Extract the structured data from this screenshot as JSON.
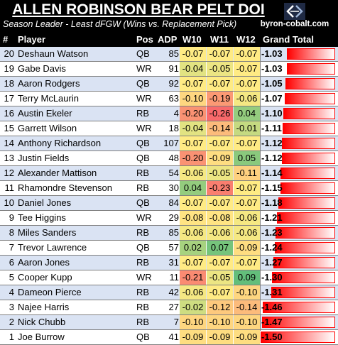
{
  "title": "ALLEN ROBINSON BEAR PELT DOI",
  "subtitle": "Season Leader - Least dFGW (Wins vs. Replacement Pick)",
  "logo_text": "byron-cobalt.com",
  "logo_icon": "bc-logo-icon",
  "columns": {
    "rank": "#",
    "player": "Player",
    "pos": "Pos",
    "adp": "ADP",
    "w10": "W10",
    "w11": "W11",
    "w12": "W12",
    "grand_total": "Grand Total"
  },
  "colors": {
    "header_bg": "#000000",
    "row_alt": "#dae3f3",
    "bar": "#ff0000",
    "negative_high": "#f8696b",
    "neutral": "#ffeb84",
    "positive": "#63be7b"
  },
  "rows": [
    {
      "rank": "20",
      "player": "Deshaun Watson",
      "pos": "QB",
      "adp": "85",
      "w10": "-0.07",
      "w11": "-0.07",
      "w12": "-0.07",
      "total": "-1.03"
    },
    {
      "rank": "19",
      "player": "Gabe Davis",
      "pos": "WR",
      "adp": "91",
      "w10": "-0.04",
      "w11": "-0.05",
      "w12": "-0.07",
      "total": "-1.03"
    },
    {
      "rank": "18",
      "player": "Aaron Rodgers",
      "pos": "QB",
      "adp": "92",
      "w10": "-0.07",
      "w11": "-0.07",
      "w12": "-0.07",
      "total": "-1.05"
    },
    {
      "rank": "17",
      "player": "Terry McLaurin",
      "pos": "WR",
      "adp": "63",
      "w10": "-0.10",
      "w11": "-0.19",
      "w12": "-0.06",
      "total": "-1.07"
    },
    {
      "rank": "16",
      "player": "Austin Ekeler",
      "pos": "RB",
      "adp": "4",
      "w10": "-0.20",
      "w11": "-0.26",
      "w12": "0.04",
      "total": "-1.10"
    },
    {
      "rank": "15",
      "player": "Garrett Wilson",
      "pos": "WR",
      "adp": "18",
      "w10": "-0.04",
      "w11": "-0.14",
      "w12": "-0.01",
      "total": "-1.11"
    },
    {
      "rank": "14",
      "player": "Anthony Richardson",
      "pos": "QB",
      "adp": "107",
      "w10": "-0.07",
      "w11": "-0.07",
      "w12": "-0.07",
      "total": "-1.12"
    },
    {
      "rank": "13",
      "player": "Justin Fields",
      "pos": "QB",
      "adp": "48",
      "w10": "-0.20",
      "w11": "-0.09",
      "w12": "0.05",
      "total": "-1.12"
    },
    {
      "rank": "12",
      "player": "Alexander Mattison",
      "pos": "RB",
      "adp": "54",
      "w10": "-0.06",
      "w11": "-0.05",
      "w12": "-0.11",
      "total": "-1.14"
    },
    {
      "rank": "11",
      "player": "Rhamondre Stevenson",
      "pos": "RB",
      "adp": "30",
      "w10": "0.04",
      "w11": "-0.23",
      "w12": "-0.07",
      "total": "-1.15"
    },
    {
      "rank": "10",
      "player": "Daniel Jones",
      "pos": "QB",
      "adp": "84",
      "w10": "-0.07",
      "w11": "-0.07",
      "w12": "-0.07",
      "total": "-1.18"
    },
    {
      "rank": "9",
      "player": "Tee Higgins",
      "pos": "WR",
      "adp": "29",
      "w10": "-0.08",
      "w11": "-0.08",
      "w12": "-0.06",
      "total": "-1.21"
    },
    {
      "rank": "8",
      "player": "Miles Sanders",
      "pos": "RB",
      "adp": "85",
      "w10": "-0.06",
      "w11": "-0.06",
      "w12": "-0.06",
      "total": "-1.23"
    },
    {
      "rank": "7",
      "player": "Trevor Lawrence",
      "pos": "QB",
      "adp": "57",
      "w10": "0.02",
      "w11": "0.07",
      "w12": "-0.09",
      "total": "-1.24"
    },
    {
      "rank": "6",
      "player": "Aaron Jones",
      "pos": "RB",
      "adp": "31",
      "w10": "-0.07",
      "w11": "-0.07",
      "w12": "-0.07",
      "total": "-1.27"
    },
    {
      "rank": "5",
      "player": "Cooper Kupp",
      "pos": "WR",
      "adp": "11",
      "w10": "-0.21",
      "w11": "-0.05",
      "w12": "0.09",
      "total": "-1.30"
    },
    {
      "rank": "4",
      "player": "Dameon Pierce",
      "pos": "RB",
      "adp": "42",
      "w10": "-0.06",
      "w11": "-0.07",
      "w12": "-0.10",
      "total": "-1.31"
    },
    {
      "rank": "3",
      "player": "Najee Harris",
      "pos": "RB",
      "adp": "27",
      "w10": "-0.02",
      "w11": "-0.12",
      "w12": "-0.14",
      "total": "-1.46"
    },
    {
      "rank": "2",
      "player": "Nick Chubb",
      "pos": "RB",
      "adp": "7",
      "w10": "-0.10",
      "w11": "-0.10",
      "w12": "-0.10",
      "total": "-1.47"
    },
    {
      "rank": "1",
      "player": "Joe Burrow",
      "pos": "QB",
      "adp": "41",
      "w10": "-0.09",
      "w11": "-0.09",
      "w12": "-0.09",
      "total": "-1.50"
    }
  ]
}
